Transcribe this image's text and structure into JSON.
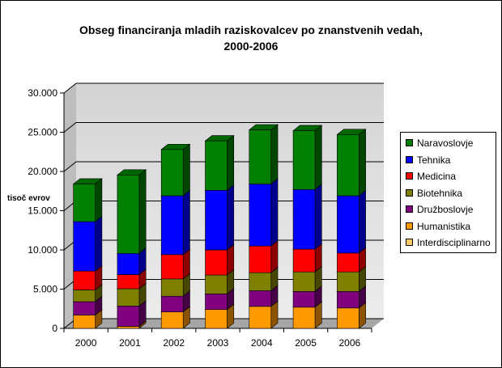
{
  "chart_data": {
    "type": "bar",
    "stacked": true,
    "three_d": true,
    "title_line1": "Obseg financiranja mladih raziskovalcev po znanstvenih vedah,",
    "title_line2": "2000-2006",
    "ylabel": "tisoč evrov",
    "xlabel": "",
    "ylim": [
      0,
      30000
    ],
    "yticks": [
      "0",
      "5.000",
      "10.000",
      "15.000",
      "20.000",
      "25.000",
      "30.000"
    ],
    "ytick_values": [
      0,
      5000,
      10000,
      15000,
      20000,
      25000,
      30000
    ],
    "grid": true,
    "legend_position": "right",
    "categories": [
      "2000",
      "2001",
      "2002",
      "2003",
      "2004",
      "2005",
      "2006"
    ],
    "series": [
      {
        "name": "Interdisciplinarno",
        "color": "#FFCC66",
        "values": [
          0,
          0,
          0,
          0,
          0,
          0,
          0
        ]
      },
      {
        "name": "Humanistika",
        "color": "#FF9900",
        "values": [
          1700,
          250,
          2100,
          2400,
          2800,
          2700,
          2600
        ]
      },
      {
        "name": "Družboslovje",
        "color": "#800080",
        "values": [
          1700,
          2600,
          2000,
          2000,
          2000,
          2000,
          2100
        ]
      },
      {
        "name": "Biotehnika",
        "color": "#808000",
        "values": [
          1500,
          2200,
          2200,
          2400,
          2300,
          2500,
          2500
        ]
      },
      {
        "name": "Medicina",
        "color": "#FF0000",
        "values": [
          2400,
          1800,
          3100,
          3200,
          3400,
          2900,
          2400
        ]
      },
      {
        "name": "Tehnika",
        "color": "#0000FF",
        "values": [
          6300,
          2700,
          7500,
          7600,
          7900,
          7600,
          7300
        ]
      },
      {
        "name": "Naravoslovje",
        "color": "#008000",
        "values": [
          4800,
          10000,
          5900,
          6300,
          6900,
          7500,
          7800
        ]
      }
    ]
  }
}
